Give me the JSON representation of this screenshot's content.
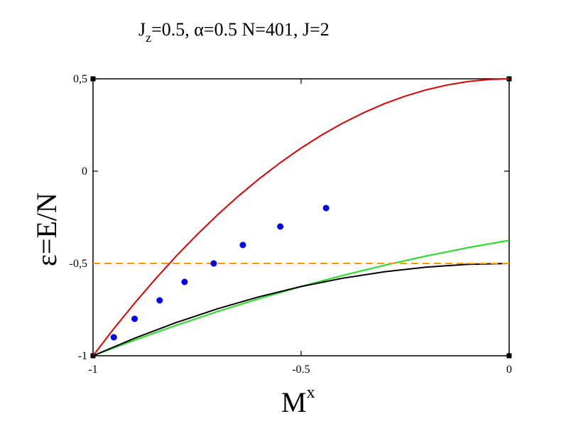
{
  "chart_data": {
    "type": "line",
    "title": {
      "p1": "J",
      "p1_sub": "z",
      "p2": "=0.5, ",
      "p3": "α",
      "p4": "=0.5 N=401, J=2"
    },
    "xlabel": {
      "main": "M",
      "sup": "x"
    },
    "ylabel": "ε=E/N",
    "xlim": [
      -1,
      0
    ],
    "ylim": [
      -1,
      0.5
    ],
    "x_ticks": [
      {
        "value": -1,
        "label": "-1"
      },
      {
        "value": -0.5,
        "label": "-0.5"
      },
      {
        "value": 0,
        "label": "0"
      }
    ],
    "y_ticks": [
      {
        "value": -1,
        "label": "-1"
      },
      {
        "value": -0.5,
        "label": "-0,5"
      },
      {
        "value": 0,
        "label": "0"
      },
      {
        "value": 0.5,
        "label": "0,5"
      }
    ],
    "grid": false,
    "series": [
      {
        "style": "line",
        "color": "#dd0000",
        "x": [
          -1,
          -0.95,
          -0.9,
          -0.85,
          -0.8,
          -0.75,
          -0.7,
          -0.65,
          -0.6,
          -0.55,
          -0.5,
          -0.45,
          -0.4,
          -0.35,
          -0.3,
          -0.25,
          -0.2,
          -0.15,
          -0.1,
          -0.05,
          0
        ],
        "y": [
          -1,
          -0.853,
          -0.715,
          -0.584,
          -0.46,
          -0.344,
          -0.235,
          -0.134,
          -0.04,
          0.046,
          0.125,
          0.196,
          0.26,
          0.316,
          0.365,
          0.406,
          0.44,
          0.466,
          0.485,
          0.496,
          0.5
        ]
      },
      {
        "style": "line",
        "color": "#22dd22",
        "x": [
          -1,
          -0.9,
          -0.8,
          -0.7,
          -0.6,
          -0.5,
          -0.4,
          -0.3,
          -0.2,
          -0.1,
          0
        ],
        "y": [
          -1,
          -0.915,
          -0.835,
          -0.76,
          -0.69,
          -0.625,
          -0.565,
          -0.51,
          -0.46,
          -0.415,
          -0.375
        ]
      },
      {
        "style": "line",
        "color": "#000000",
        "x": [
          -1,
          -0.9,
          -0.8,
          -0.7,
          -0.6,
          -0.5,
          -0.4,
          -0.3,
          -0.2,
          -0.1,
          0
        ],
        "y": [
          -1,
          -0.905,
          -0.82,
          -0.745,
          -0.68,
          -0.625,
          -0.58,
          -0.545,
          -0.52,
          -0.505,
          -0.5
        ]
      },
      {
        "style": "dashed",
        "color": "#ff9900",
        "x": [
          -1,
          0
        ],
        "y": [
          -0.5,
          -0.5
        ]
      },
      {
        "style": "points",
        "color": "#0000ee",
        "x": [
          -0.95,
          -0.9,
          -0.84,
          -0.78,
          -0.71,
          -0.64,
          -0.55,
          -0.44
        ],
        "y": [
          -0.9,
          -0.8,
          -0.7,
          -0.6,
          -0.5,
          -0.4,
          -0.3,
          -0.2
        ]
      }
    ]
  }
}
